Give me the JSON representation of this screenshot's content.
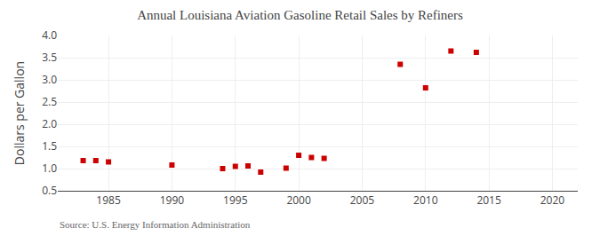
{
  "chart_data": {
    "type": "scatter",
    "title": "Annual Louisiana Aviation Gasoline Retail Sales by Refiners",
    "y_label": "Dollars per Gallon",
    "annotations": [
      "Source: U.S. Energy Information Administration"
    ],
    "x": [
      1983,
      1984,
      1985,
      1990,
      1994,
      1995,
      1996,
      1997,
      1999,
      2000,
      2001,
      2002,
      2008,
      2010,
      2012,
      2014
    ],
    "values": [
      1.18,
      1.18,
      1.15,
      1.08,
      1.0,
      1.05,
      1.06,
      0.92,
      1.01,
      1.3,
      1.25,
      1.23,
      3.35,
      2.82,
      3.65,
      3.62
    ],
    "color": "#cc0000",
    "marker": "square",
    "xlim": [
      1981,
      2022
    ],
    "ylim": [
      0.5,
      4.0
    ],
    "xticks": [
      1985,
      1990,
      1995,
      2000,
      2005,
      2010,
      2015,
      2020
    ],
    "yticks": [
      0.5,
      {
        "value": 1.0,
        "label": "1.0"
      },
      1.5,
      {
        "value": 2.0,
        "label": "2.0"
      },
      2.5,
      {
        "value": 3.0,
        "label": "3.0"
      },
      3.5,
      {
        "value": 4.0,
        "label": "4.0"
      }
    ],
    "grid": true
  }
}
